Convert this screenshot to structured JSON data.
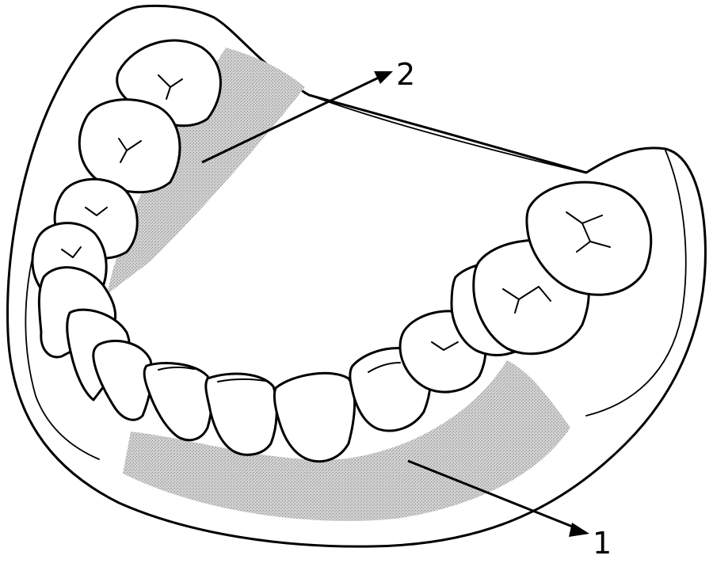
{
  "figure": {
    "callouts": [
      {
        "number": "1",
        "target": "lower-gingival-region"
      },
      {
        "number": "2",
        "target": "upper-palatal-region"
      }
    ],
    "colors": {
      "line": "#000000",
      "background": "#ffffff",
      "shading": "#a8a8a8"
    }
  }
}
